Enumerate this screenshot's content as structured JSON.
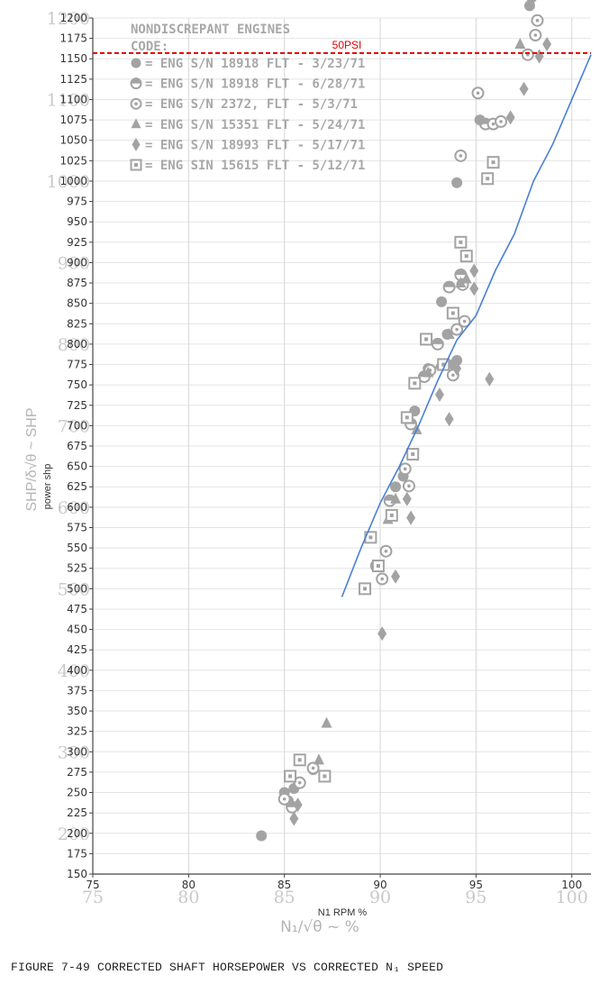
{
  "chart_data": {
    "type": "scatter",
    "title": "",
    "xlabel": "N1 RPM %",
    "ylabel": "power shp",
    "scanned_xlabel": "N₁/√θ ~ %",
    "scanned_ylabel": "SHP/δ√θ ~ SHP",
    "xlim": [
      75,
      101
    ],
    "ylim": [
      150,
      1200
    ],
    "x_ticks": [
      75,
      80,
      85,
      90,
      95,
      100
    ],
    "y_ticks": [
      150,
      175,
      200,
      225,
      250,
      275,
      300,
      325,
      350,
      375,
      400,
      425,
      450,
      475,
      500,
      525,
      550,
      575,
      600,
      625,
      650,
      675,
      700,
      725,
      750,
      775,
      800,
      825,
      850,
      875,
      900,
      925,
      950,
      975,
      1000,
      1025,
      1050,
      1075,
      1100,
      1125,
      1150,
      1175,
      1200
    ],
    "big_y_ticks": [
      200,
      300,
      400,
      500,
      600,
      700,
      800,
      900,
      1000,
      1100,
      1200
    ],
    "grid": true,
    "reference_line": {
      "label": "50PSI",
      "y": 1157,
      "color": "#e00000"
    },
    "legend_title": "NONDISCREPANT ENGINES",
    "legend_subtitle": "CODE:",
    "legend_entries": [
      {
        "marker": "circle",
        "text": "= ENG S/N 18918 FLT - 3/23/71"
      },
      {
        "marker": "half-circle",
        "text": "= ENG S/N 18918 FLT - 6/28/71"
      },
      {
        "marker": "circle-dot",
        "text": "= ENG S/N 2372, FLT - 5/3/71"
      },
      {
        "marker": "triangle",
        "text": "= ENG S/N 15351 FLT - 5/24/71"
      },
      {
        "marker": "diamond",
        "text": "= ENG S/N 18993 FLT - 5/17/71"
      },
      {
        "marker": "square-dot",
        "text": "= ENG SIN 15615 FLT - 5/12/71"
      }
    ],
    "curve": {
      "color": "#4a7fd4",
      "x": [
        88.0,
        89.0,
        90.0,
        91.0,
        92.0,
        93.0,
        94.0,
        95.0,
        96.0,
        97.0,
        98.0,
        99.0,
        100.0,
        101.0
      ],
      "y": [
        490,
        550,
        605,
        650,
        700,
        755,
        805,
        835,
        890,
        935,
        1000,
        1045,
        1100,
        1155
      ]
    },
    "series": [
      {
        "marker": "circle",
        "points": [
          [
            83.8,
            197
          ],
          [
            85.0,
            250
          ],
          [
            85.2,
            240
          ],
          [
            85.5,
            255
          ],
          [
            86.5,
            278
          ],
          [
            90.8,
            625
          ],
          [
            91.2,
            638
          ],
          [
            91.8,
            718
          ],
          [
            92.5,
            770
          ],
          [
            93.2,
            852
          ],
          [
            93.5,
            812
          ],
          [
            93.8,
            775
          ],
          [
            94.0,
            780
          ],
          [
            94.0,
            998
          ],
          [
            95.2,
            1075
          ],
          [
            97.8,
            1215
          ],
          [
            97.9,
            1225
          ]
        ]
      },
      {
        "marker": "half-circle",
        "points": [
          [
            85.4,
            232
          ],
          [
            90.5,
            608
          ],
          [
            91.6,
            702
          ],
          [
            92.3,
            760
          ],
          [
            93.0,
            800
          ],
          [
            93.6,
            870
          ],
          [
            94.2,
            885
          ],
          [
            95.5,
            1070
          ]
        ]
      },
      {
        "marker": "circle-dot",
        "points": [
          [
            85.0,
            242
          ],
          [
            85.8,
            262
          ],
          [
            86.5,
            280
          ],
          [
            89.8,
            528
          ],
          [
            90.1,
            512
          ],
          [
            90.3,
            546
          ],
          [
            91.3,
            647
          ],
          [
            91.5,
            626
          ],
          [
            92.6,
            768
          ],
          [
            93.8,
            762
          ],
          [
            94.0,
            818
          ],
          [
            94.4,
            828
          ],
          [
            94.3,
            873
          ],
          [
            94.2,
            1031
          ],
          [
            95.1,
            1108
          ],
          [
            95.9,
            1070
          ],
          [
            96.3,
            1073
          ],
          [
            97.7,
            1155
          ],
          [
            98.1,
            1179
          ],
          [
            98.2,
            1197
          ]
        ]
      },
      {
        "marker": "triangle",
        "points": [
          [
            86.8,
            290
          ],
          [
            87.2,
            335
          ],
          [
            90.4,
            585
          ],
          [
            90.8,
            610
          ],
          [
            91.9,
            695
          ],
          [
            92.5,
            765
          ],
          [
            93.1,
            775
          ],
          [
            93.6,
            812
          ],
          [
            94.2,
            875
          ],
          [
            94.5,
            880
          ],
          [
            97.3,
            1168
          ]
        ]
      },
      {
        "marker": "diamond",
        "points": [
          [
            85.5,
            218
          ],
          [
            85.7,
            235
          ],
          [
            90.1,
            445
          ],
          [
            90.8,
            515
          ],
          [
            91.4,
            610
          ],
          [
            91.6,
            587
          ],
          [
            93.1,
            738
          ],
          [
            93.6,
            708
          ],
          [
            94.0,
            770
          ],
          [
            94.9,
            868
          ],
          [
            94.9,
            890
          ],
          [
            95.7,
            757
          ],
          [
            96.8,
            1078
          ],
          [
            97.5,
            1113
          ],
          [
            98.3,
            1153
          ],
          [
            98.7,
            1168
          ]
        ]
      },
      {
        "marker": "square-dot",
        "points": [
          [
            85.3,
            270
          ],
          [
            85.8,
            290
          ],
          [
            87.1,
            270
          ],
          [
            89.2,
            500
          ],
          [
            89.5,
            563
          ],
          [
            89.9,
            528
          ],
          [
            90.6,
            590
          ],
          [
            91.4,
            710
          ],
          [
            91.7,
            665
          ],
          [
            91.8,
            752
          ],
          [
            92.4,
            806
          ],
          [
            93.3,
            775
          ],
          [
            93.8,
            838
          ],
          [
            94.2,
            925
          ],
          [
            94.5,
            908
          ],
          [
            95.6,
            1003
          ],
          [
            95.9,
            1023
          ]
        ]
      }
    ]
  },
  "caption": "FIGURE 7-49  CORRECTED SHAFT HORSEPOWER VS CORRECTED N₁ SPEED"
}
